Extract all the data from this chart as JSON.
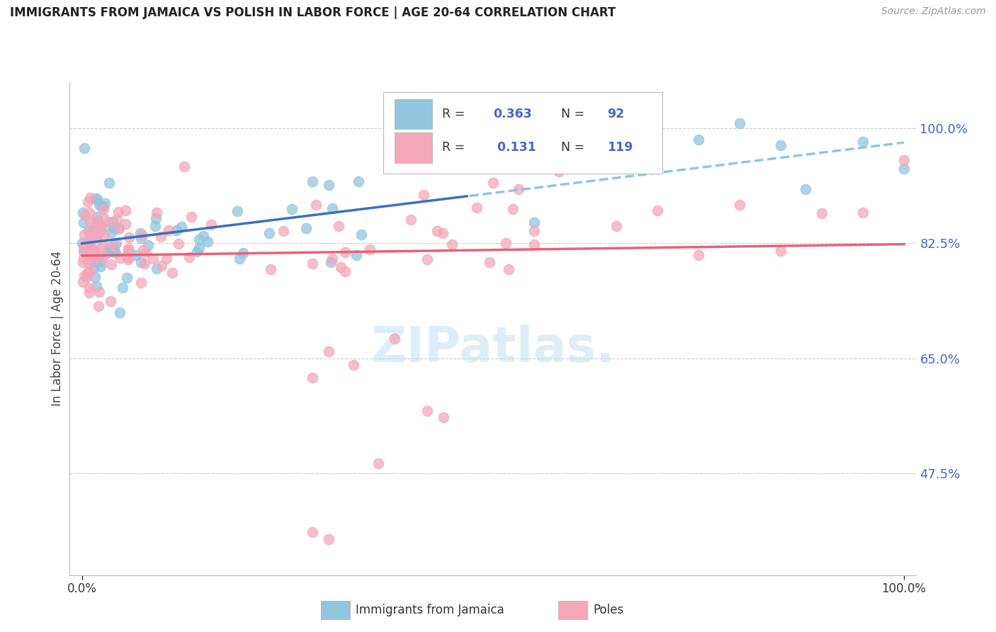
{
  "title": "IMMIGRANTS FROM JAMAICA VS POLISH IN LABOR FORCE | AGE 20-64 CORRELATION CHART",
  "source": "Source: ZipAtlas.com",
  "ylabel": "In Labor Force | Age 20-64",
  "legend_r_jamaica": "0.363",
  "legend_n_jamaica": "92",
  "legend_r_poles": "0.131",
  "legend_n_poles": "119",
  "color_jamaica": "#92C5DE",
  "color_poles": "#F4A7B9",
  "trendline_jamaica_solid": "#3A6FC4",
  "trendline_jamaica_dashed": "#92C5DE",
  "trendline_poles": "#E8607A",
  "background_color": "#ffffff",
  "grid_color": "#cccccc",
  "ytick_color": "#4466cc",
  "watermark_color": "#c8e4f0",
  "ytick_labels": [
    "100.0%",
    "82.5%",
    "65.0%",
    "47.5%"
  ],
  "ytick_vals": [
    1.0,
    0.825,
    0.65,
    0.475
  ],
  "xtick_labels": [
    "0.0%",
    "100.0%"
  ],
  "legend_label_jamaica": "Immigrants from Jamaica",
  "legend_label_poles": "Poles"
}
